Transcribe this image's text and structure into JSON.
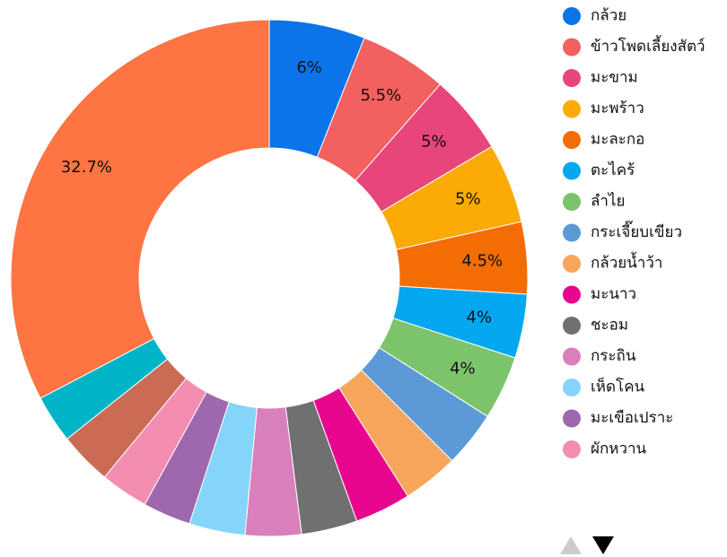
{
  "chart_data": {
    "type": "donut",
    "categories": [
      "กล้วย",
      "ข้าวโพดเลี้ยงสัตว์",
      "มะขาม",
      "มะพร้าว",
      "มะละกอ",
      "ตะไคร้",
      "ลำไย",
      "กระเจี๊ยบเขียว",
      "กล้วยน้ำว้า",
      "มะนาว",
      "ชะอม",
      "กระถิน",
      "เห็ดโคน",
      "มะเขือเปราะ",
      "ผักหวาน",
      null,
      null,
      null
    ],
    "values": [
      6,
      5.5,
      5,
      5,
      4.5,
      4,
      4,
      3.5,
      3.5,
      3.5,
      3.5,
      3.5,
      3.5,
      3,
      3,
      3.3,
      3,
      32.7
    ],
    "value_labels": [
      "6%",
      "5.5%",
      "5%",
      "5%",
      "4.5%",
      "4%",
      "4%",
      null,
      null,
      null,
      null,
      null,
      null,
      null,
      null,
      null,
      null,
      "32.7%"
    ],
    "colors": [
      "#0a74e8",
      "#f2605f",
      "#e8457a",
      "#fcaa05",
      "#f36c04",
      "#05a8f0",
      "#7cc46b",
      "#5b9ad6",
      "#f8a65c",
      "#e8068f",
      "#707070",
      "#d97fbb",
      "#85d4fa",
      "#9f67ad",
      "#f48db2",
      "#cc6b55",
      "#00b4c8",
      "#fe7443"
    ],
    "legend": "right"
  }
}
